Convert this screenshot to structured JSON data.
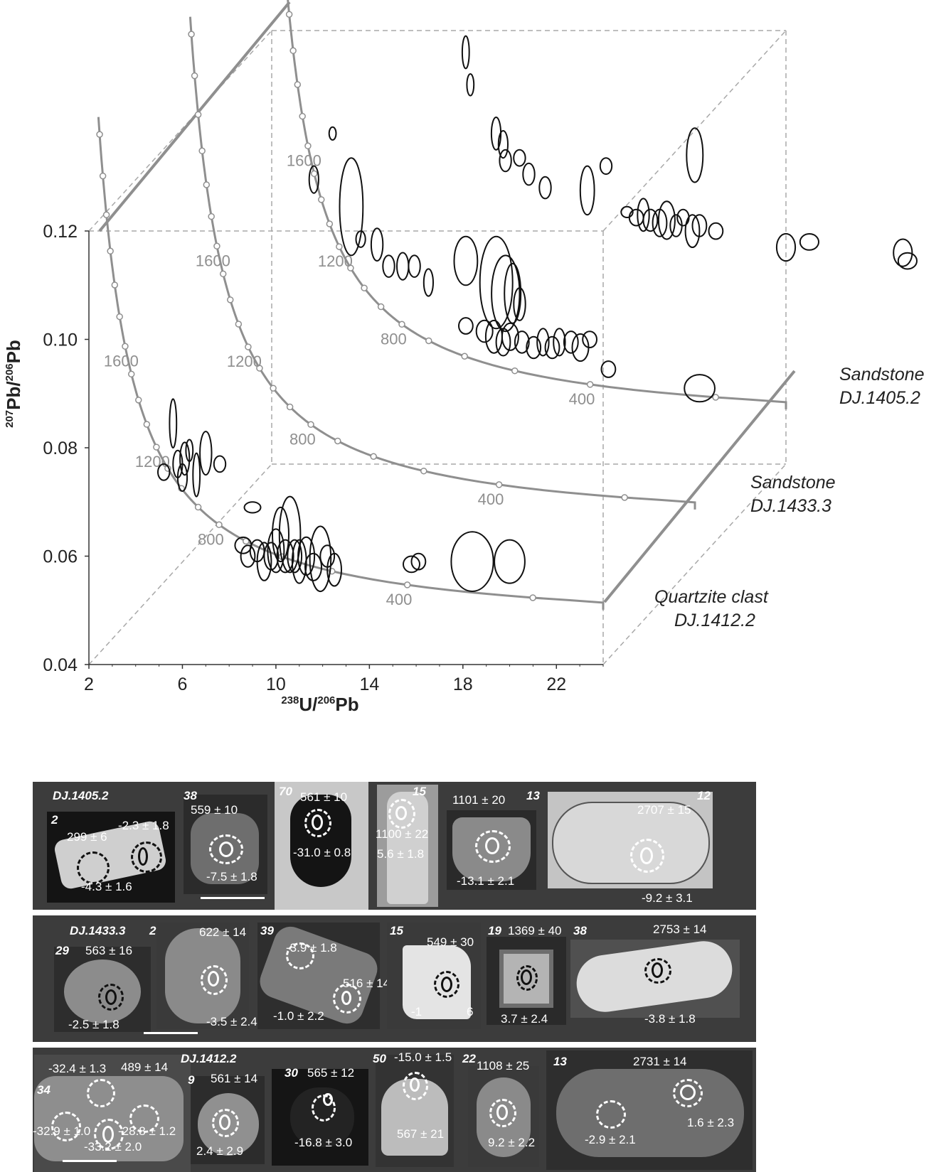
{
  "chart_data": {
    "type": "scatter",
    "xlabel": "238U/206Pb",
    "ylabel": "207Pb/206Pb",
    "xlabel_parts": {
      "sup": "238",
      "base1": "U/",
      "sup2": "206",
      "base2": "Pb"
    },
    "ylabel_parts": {
      "sup": "207",
      "base1": "Pb/",
      "sup2": "206",
      "base2": "Pb"
    },
    "x_ticks": [
      "2",
      "6",
      "10",
      "14",
      "18",
      "22"
    ],
    "y_ticks": [
      "0.04",
      "0.06",
      "0.08",
      "0.10",
      "0.12"
    ],
    "xlim": [
      2,
      24
    ],
    "ylim": [
      0.04,
      0.12
    ],
    "series": [
      {
        "name": "Quartzite clast DJ.1412.2",
        "label_line1": "Quartzite clast",
        "label_line2": "DJ.1412.2",
        "concordia_ages": [
          "1600",
          "1200",
          "800",
          "400"
        ],
        "ellipses": [
          [
            5.6,
            0.0845,
            0.15,
            0.0045
          ],
          [
            5.2,
            0.0755,
            0.25,
            0.0015
          ],
          [
            5.8,
            0.077,
            0.2,
            0.0025
          ],
          [
            6.1,
            0.078,
            0.2,
            0.003
          ],
          [
            6.0,
            0.0745,
            0.2,
            0.0025
          ],
          [
            6.3,
            0.0795,
            0.15,
            0.002
          ],
          [
            6.6,
            0.075,
            0.15,
            0.004
          ],
          [
            7.0,
            0.079,
            0.25,
            0.004
          ],
          [
            7.6,
            0.077,
            0.25,
            0.0015
          ],
          [
            9.0,
            0.069,
            0.35,
            0.001
          ],
          [
            8.6,
            0.062,
            0.35,
            0.0015
          ],
          [
            8.8,
            0.06,
            0.3,
            0.002
          ],
          [
            9.2,
            0.061,
            0.3,
            0.002
          ],
          [
            9.5,
            0.059,
            0.3,
            0.0035
          ],
          [
            9.8,
            0.06,
            0.3,
            0.0025
          ],
          [
            10.0,
            0.061,
            0.35,
            0.004
          ],
          [
            10.2,
            0.064,
            0.35,
            0.005
          ],
          [
            10.4,
            0.06,
            0.35,
            0.003
          ],
          [
            10.6,
            0.064,
            0.45,
            0.007
          ],
          [
            10.8,
            0.06,
            0.3,
            0.003
          ],
          [
            11.0,
            0.059,
            0.3,
            0.004
          ],
          [
            11.3,
            0.06,
            0.35,
            0.0035
          ],
          [
            11.6,
            0.058,
            0.35,
            0.0025
          ],
          [
            11.9,
            0.0595,
            0.45,
            0.006
          ],
          [
            12.2,
            0.06,
            0.3,
            0.002
          ],
          [
            12.5,
            0.0575,
            0.3,
            0.003
          ],
          [
            15.8,
            0.0585,
            0.35,
            0.0015
          ],
          [
            16.1,
            0.059,
            0.3,
            0.0015
          ],
          [
            18.4,
            0.059,
            0.9,
            0.0055
          ],
          [
            20.0,
            0.059,
            0.65,
            0.004
          ]
        ]
      },
      {
        "name": "Sandstone DJ.1433.3",
        "label_line1": "Sandstone",
        "label_line2": "DJ.1433.3",
        "concordia_ages": [
          "1600",
          "1200",
          "800",
          "400"
        ],
        "ellipses": [
          [
            8.5,
            0.1195,
            0.15,
            0.0012
          ],
          [
            7.7,
            0.111,
            0.2,
            0.0025
          ],
          [
            9.3,
            0.106,
            0.5,
            0.009
          ],
          [
            9.7,
            0.1,
            0.2,
            0.0015
          ],
          [
            10.4,
            0.099,
            0.25,
            0.003
          ],
          [
            10.9,
            0.095,
            0.25,
            0.002
          ],
          [
            11.5,
            0.095,
            0.25,
            0.0025
          ],
          [
            12.0,
            0.095,
            0.25,
            0.002
          ],
          [
            12.6,
            0.092,
            0.2,
            0.0025
          ],
          [
            14.2,
            0.096,
            0.5,
            0.0045
          ],
          [
            15.5,
            0.092,
            0.7,
            0.0085
          ],
          [
            15.9,
            0.09,
            0.6,
            0.007
          ],
          [
            16.2,
            0.09,
            0.35,
            0.0055
          ],
          [
            16.5,
            0.088,
            0.25,
            0.003
          ],
          [
            14.2,
            0.084,
            0.3,
            0.0015
          ],
          [
            15.0,
            0.083,
            0.35,
            0.002
          ],
          [
            15.4,
            0.082,
            0.35,
            0.003
          ],
          [
            15.8,
            0.081,
            0.3,
            0.0025
          ],
          [
            16.1,
            0.082,
            0.35,
            0.0025
          ],
          [
            16.6,
            0.081,
            0.3,
            0.002
          ],
          [
            17.1,
            0.08,
            0.3,
            0.002
          ],
          [
            17.5,
            0.081,
            0.25,
            0.0025
          ],
          [
            17.9,
            0.08,
            0.3,
            0.002
          ],
          [
            18.2,
            0.081,
            0.25,
            0.0025
          ],
          [
            18.7,
            0.081,
            0.3,
            0.002
          ],
          [
            19.1,
            0.08,
            0.35,
            0.0025
          ],
          [
            19.5,
            0.0815,
            0.3,
            0.0015
          ],
          [
            20.3,
            0.076,
            0.3,
            0.0015
          ],
          [
            24.2,
            0.0725,
            0.65,
            0.0025
          ]
        ]
      },
      {
        "name": "Sandstone DJ.1405.2",
        "label_line1": "Sandstone",
        "label_line2": "DJ.1405.2",
        "concordia_ages": [
          "1600",
          "1200",
          "800",
          "400"
        ],
        "ellipses": [
          [
            9.6,
            0.1435,
            0.15,
            0.0015
          ],
          [
            10.0,
            0.13,
            0.15,
            0.001
          ],
          [
            10.3,
            0.116,
            0.15,
            0.003
          ],
          [
            10.5,
            0.11,
            0.15,
            0.002
          ],
          [
            11.6,
            0.101,
            0.2,
            0.003
          ],
          [
            11.9,
            0.099,
            0.2,
            0.0025
          ],
          [
            12.0,
            0.096,
            0.25,
            0.002
          ],
          [
            12.6,
            0.0965,
            0.25,
            0.0015
          ],
          [
            13.0,
            0.0935,
            0.25,
            0.002
          ],
          [
            13.7,
            0.091,
            0.25,
            0.002
          ],
          [
            16.3,
            0.095,
            0.25,
            0.0015
          ],
          [
            15.5,
            0.0905,
            0.3,
            0.0045
          ],
          [
            17.2,
            0.0865,
            0.25,
            0.001
          ],
          [
            17.6,
            0.0855,
            0.3,
            0.0015
          ],
          [
            17.9,
            0.086,
            0.25,
            0.003
          ],
          [
            18.2,
            0.085,
            0.3,
            0.002
          ],
          [
            18.6,
            0.0845,
            0.3,
            0.0025
          ],
          [
            18.9,
            0.085,
            0.35,
            0.0035
          ],
          [
            19.3,
            0.084,
            0.25,
            0.002
          ],
          [
            19.6,
            0.0855,
            0.25,
            0.0015
          ],
          [
            20.0,
            0.083,
            0.3,
            0.003
          ],
          [
            20.3,
            0.084,
            0.3,
            0.002
          ],
          [
            21.0,
            0.083,
            0.3,
            0.0015
          ],
          [
            20.1,
            0.097,
            0.35,
            0.005
          ],
          [
            24.0,
            0.08,
            0.4,
            0.0025
          ],
          [
            25.0,
            0.081,
            0.4,
            0.0015
          ],
          [
            29.0,
            0.079,
            0.4,
            0.0025
          ],
          [
            29.2,
            0.0775,
            0.4,
            0.0015
          ]
        ]
      }
    ]
  },
  "panels": {
    "row1": {
      "sample": "DJ.1405.2",
      "grains": [
        {
          "num": "2",
          "labels": [
            "299 ± 6",
            "-2.3 ± 1.8",
            "-4.3 ± 1.6"
          ]
        },
        {
          "num": "38",
          "labels": [
            "559 ± 10",
            "-7.5 ± 1.8"
          ]
        },
        {
          "num": "70",
          "labels": [
            "561 ± 10",
            "-31.0 ± 0.8"
          ]
        },
        {
          "num": "15",
          "labels": [
            "1100 ± 22",
            "5.6 ± 1.8"
          ]
        },
        {
          "num": "13",
          "labels": [
            "1101 ± 20",
            "-13.1 ± 2.1"
          ]
        },
        {
          "num": "12",
          "labels": [
            "2707 ± 15",
            "-9.2 ± 3.1"
          ]
        }
      ]
    },
    "row2": {
      "sample": "DJ.1433.3",
      "grains": [
        {
          "num": "29",
          "labels": [
            "563 ± 16",
            "-2.5 ± 1.8"
          ]
        },
        {
          "num": "2",
          "labels": [
            "622 ± 14",
            "-3.5 ± 2.4"
          ]
        },
        {
          "num": "39",
          "labels": [
            "-3.9 ± 1.8",
            "516 ± 14",
            "-1.0 ± 2.2"
          ]
        },
        {
          "num": "15",
          "labels": [
            "549 ± 30",
            "-1",
            "6"
          ]
        },
        {
          "num": "19",
          "labels": [
            "1369 ± 40",
            "3.7 ± 2.4"
          ]
        },
        {
          "num": "38",
          "labels": [
            "2753 ± 14",
            "-3.8 ± 1.8"
          ]
        }
      ]
    },
    "row3": {
      "sample": "DJ.1412.2",
      "grains": [
        {
          "num": "34",
          "labels": [
            "-32.4 ± 1.3",
            "489 ± 14",
            "-32.9 ± 1.0",
            "-28.8 ± 1.2",
            "-33.2 ± 2.0"
          ]
        },
        {
          "num": "9",
          "labels": [
            "561 ± 14",
            "2.4 ± 2.9"
          ]
        },
        {
          "num": "30",
          "labels": [
            "565 ± 12",
            "-16.8 ± 3.0"
          ]
        },
        {
          "num": "50",
          "labels": [
            "-15.0 ± 1.5",
            "567 ± 21"
          ]
        },
        {
          "num": "22",
          "labels": [
            "1108 ± 25",
            "9.2 ± 2.2"
          ]
        },
        {
          "num": "13",
          "labels": [
            "2731 ± 14",
            "-2.9 ± 2.1",
            "1.6 ± 2.3"
          ]
        }
      ]
    }
  }
}
